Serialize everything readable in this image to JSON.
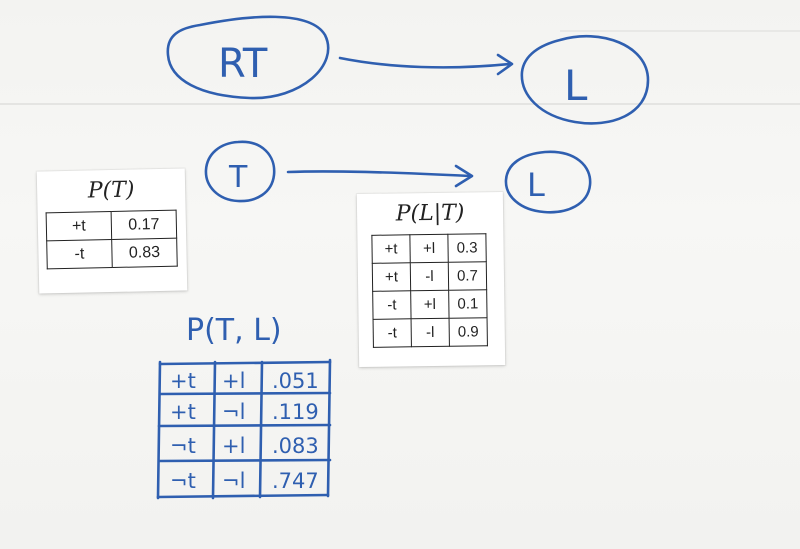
{
  "diagram": {
    "top_node_left": "RT",
    "top_node_right": "L",
    "second_node_left": "T",
    "second_node_right": "L"
  },
  "prior_card": {
    "title": "P(T)",
    "rows": [
      {
        "t": "+t",
        "p": "0.17"
      },
      {
        "t": "-t",
        "p": "0.83"
      }
    ]
  },
  "conditional_card": {
    "title": "P(L|T)",
    "rows": [
      {
        "t": "+t",
        "l": "+l",
        "p": "0.3"
      },
      {
        "t": "+t",
        "l": "-l",
        "p": "0.7"
      },
      {
        "t": "-t",
        "l": "+l",
        "p": "0.1"
      },
      {
        "t": "-t",
        "l": "-l",
        "p": "0.9"
      }
    ]
  },
  "joint": {
    "title": "P(T, L)",
    "rows": [
      {
        "t": "+t",
        "l": "+l",
        "p": ".051"
      },
      {
        "t": "+t",
        "l": "¬l",
        "p": ".119"
      },
      {
        "t": "¬t",
        "l": "+l",
        "p": ".083"
      },
      {
        "t": "¬t",
        "l": "¬l",
        "p": ".747"
      }
    ]
  },
  "colors": {
    "marker": "#2f5fb0",
    "board": "#f4f4f2",
    "card": "#ffffff"
  }
}
